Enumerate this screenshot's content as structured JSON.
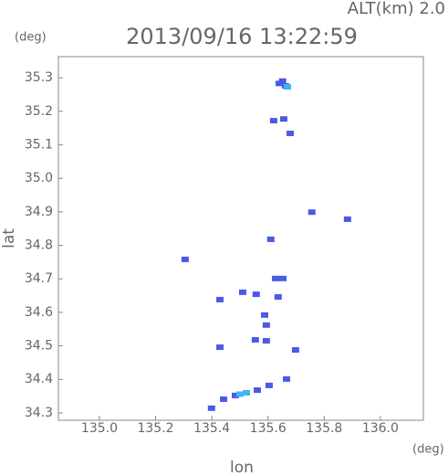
{
  "chart_data": {
    "type": "scatter",
    "title": "2013/09/16 13:22:59",
    "subtitle": "ALT(km) 2.0",
    "y_unit": "(deg)",
    "x_unit": "(deg)",
    "xlabel": "lon",
    "ylabel": "lat",
    "xlim": [
      134.854,
      136.153
    ],
    "ylim": [
      34.278,
      35.363
    ],
    "xticks": [
      {
        "value": 135.0,
        "label": "135.0"
      },
      135.2,
      135.4,
      135.6,
      135.8,
      {
        "value": 136.0,
        "label": "136.0"
      }
    ],
    "yticks": [
      34.3,
      34.4,
      34.5,
      34.6,
      34.7,
      34.8,
      34.9,
      {
        "value": 35.0,
        "label": "35.0"
      },
      35.1,
      35.2,
      35.3
    ],
    "series": [
      {
        "color": "#4a5ae6",
        "x": [
          135.64,
          135.652,
          135.662,
          135.62,
          135.656,
          135.679,
          135.756,
          135.883,
          135.61,
          135.305,
          135.627,
          135.653,
          135.429,
          135.51,
          135.558,
          135.636,
          135.588,
          135.594,
          135.555,
          135.594,
          135.429,
          135.698,
          135.604,
          135.666,
          135.399,
          135.442,
          135.484,
          135.562
        ],
        "y": [
          35.283,
          35.29,
          35.276,
          35.172,
          35.177,
          35.134,
          34.899,
          34.878,
          34.818,
          34.758,
          34.701,
          34.701,
          34.638,
          34.66,
          34.654,
          34.646,
          34.592,
          34.562,
          34.518,
          34.515,
          34.496,
          34.488,
          34.382,
          34.401,
          34.314,
          34.341,
          34.352,
          34.368
        ]
      },
      {
        "color": "#3fb4f0",
        "x": [
          135.669,
          135.523,
          135.5
        ],
        "y": [
          35.273,
          34.36,
          34.356
        ]
      }
    ]
  }
}
